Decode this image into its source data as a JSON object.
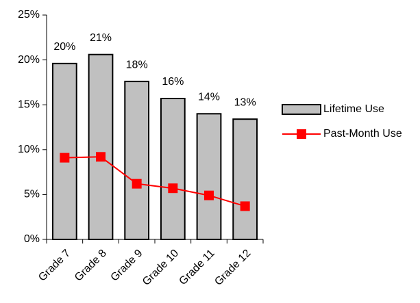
{
  "chart_data": {
    "type": "bar",
    "categories": [
      "Grade 7",
      "Grade 8",
      "Grade 9",
      "Grade 10",
      "Grade 11",
      "Grade 12"
    ],
    "series": [
      {
        "name": "Lifetime Use",
        "type": "bar",
        "color": "#c0c0c0",
        "values": [
          19.6,
          20.6,
          17.6,
          15.7,
          14.0,
          13.4
        ],
        "value_labels": [
          "20%",
          "21%",
          "18%",
          "16%",
          "14%",
          "13%"
        ]
      },
      {
        "name": "Past-Month Use",
        "type": "line",
        "color": "#ff0000",
        "values": [
          9.1,
          9.2,
          6.2,
          5.7,
          4.9,
          3.7
        ]
      }
    ],
    "ylim": [
      0,
      25
    ],
    "yticks": [
      {
        "value": 0,
        "label": "0%"
      },
      {
        "value": 5,
        "label": "5%"
      },
      {
        "value": 10,
        "label": "10%"
      },
      {
        "value": 15,
        "label": "15%"
      },
      {
        "value": 20,
        "label": "20%"
      },
      {
        "value": 25,
        "label": "25%"
      }
    ],
    "legend": "right"
  }
}
